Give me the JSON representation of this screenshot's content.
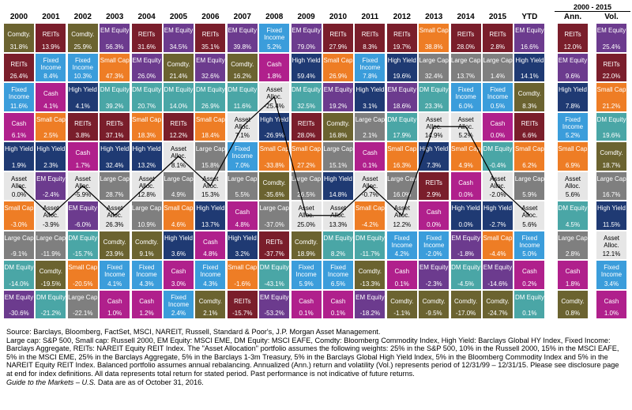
{
  "colors": {
    "Large Cap": "#7f7f7f",
    "Small Cap": "#ee7d25",
    "EM Equity": "#6c3b8e",
    "DM Equity": "#4aa6a6",
    "REITs": "#7a1e2b",
    "Fixed Income": "#3b9ddb",
    "Cash": "#b0208c",
    "High Yield": "#1f3a73",
    "Comdty.": "#6b6330",
    "Asset Alloc.": "#e6e6e6"
  },
  "header": {
    "years": [
      "2000",
      "2001",
      "2002",
      "2003",
      "2004",
      "2005",
      "2006",
      "2007",
      "2008",
      "2009",
      "2010",
      "2011",
      "2012",
      "2013",
      "2014",
      "2015",
      "YTD"
    ],
    "span_label": "2000 - 2015",
    "ann_label": "Ann.",
    "vol_label": "Vol."
  },
  "chart_data": {
    "type": "table",
    "title": "",
    "columns": [
      [
        [
          "Comdty.",
          "31.8%"
        ],
        [
          "REITs",
          "26.4%"
        ],
        [
          "Fixed Income",
          "11.6%"
        ],
        [
          "Cash",
          "6.1%"
        ],
        [
          "High Yield",
          "1.9%"
        ],
        [
          "Asset Alloc.",
          "0.0%"
        ],
        [
          "Small Cap",
          "-3.0%"
        ],
        [
          "Large Cap",
          "-9.1%"
        ],
        [
          "DM Equity",
          "-14.0%"
        ],
        [
          "EM Equity",
          "-30.6%"
        ]
      ],
      [
        [
          "REITs",
          "13.9%"
        ],
        [
          "Fixed Income",
          "8.4%"
        ],
        [
          "Cash",
          "4.1%"
        ],
        [
          "Small Cap",
          "2.5%"
        ],
        [
          "High Yield",
          "2.3%"
        ],
        [
          "EM Equity",
          "-2.4%"
        ],
        [
          "Asset Alloc.",
          "-3.9%"
        ],
        [
          "Large Cap",
          "-11.9%"
        ],
        [
          "Comdty.",
          "-19.5%"
        ],
        [
          "DM Equity",
          "-21.2%"
        ]
      ],
      [
        [
          "Comdty.",
          "25.9%"
        ],
        [
          "Fixed Income",
          "10.3%"
        ],
        [
          "High Yield",
          "4.1%"
        ],
        [
          "REITs",
          "3.8%"
        ],
        [
          "Cash",
          "1.7%"
        ],
        [
          "Asset Alloc.",
          "-5.9%"
        ],
        [
          "EM Equity",
          "-6.0%"
        ],
        [
          "DM Equity",
          "-15.7%"
        ],
        [
          "Small Cap",
          "-20.5%"
        ],
        [
          "Large Cap",
          "-22.1%"
        ]
      ],
      [
        [
          "EM Equity",
          "56.3%"
        ],
        [
          "Small Cap",
          "47.3%"
        ],
        [
          "DM Equity",
          "39.2%"
        ],
        [
          "REITs",
          "37.1%"
        ],
        [
          "High Yield",
          "32.4%"
        ],
        [
          "Large Cap",
          "28.7%"
        ],
        [
          "Asset Alloc.",
          "26.3%"
        ],
        [
          "Comdty.",
          "23.9%"
        ],
        [
          "Fixed Income",
          "4.1%"
        ],
        [
          "Cash",
          "1.0%"
        ]
      ],
      [
        [
          "REITs",
          "31.6%"
        ],
        [
          "EM Equity",
          "26.0%"
        ],
        [
          "DM Equity",
          "20.7%"
        ],
        [
          "Small Cap",
          "18.3%"
        ],
        [
          "High Yield",
          "13.2%"
        ],
        [
          "Asset Alloc.",
          "12.8%"
        ],
        [
          "Large Cap",
          "10.9%"
        ],
        [
          "Comdty.",
          "9.1%"
        ],
        [
          "Fixed Income",
          "4.3%"
        ],
        [
          "Cash",
          "1.2%"
        ]
      ],
      [
        [
          "EM Equity",
          "34.5%"
        ],
        [
          "Comdty.",
          "21.4%"
        ],
        [
          "DM Equity",
          "14.0%"
        ],
        [
          "REITs",
          "12.2%"
        ],
        [
          "Asset Alloc.",
          "8.1%"
        ],
        [
          "Large Cap",
          "4.9%"
        ],
        [
          "Small Cap",
          "4.6%"
        ],
        [
          "High Yield",
          "3.6%"
        ],
        [
          "Cash",
          "3.0%"
        ],
        [
          "Fixed Income",
          "2.4%"
        ]
      ],
      [
        [
          "REITs",
          "35.1%"
        ],
        [
          "EM Equity",
          "32.6%"
        ],
        [
          "DM Equity",
          "26.9%"
        ],
        [
          "Small Cap",
          "18.4%"
        ],
        [
          "Large Cap",
          "15.8%"
        ],
        [
          "Asset Alloc.",
          "15.3%"
        ],
        [
          "High Yield",
          "13.7%"
        ],
        [
          "Cash",
          "4.8%"
        ],
        [
          "Fixed Income",
          "4.3%"
        ],
        [
          "Comdty.",
          "2.1%"
        ]
      ],
      [
        [
          "EM Equity",
          "39.8%"
        ],
        [
          "Comdty.",
          "16.2%"
        ],
        [
          "DM Equity",
          "11.6%"
        ],
        [
          "Asset Alloc.",
          "7.1%"
        ],
        [
          "Fixed Income",
          "7.0%"
        ],
        [
          "Large Cap",
          "5.5%"
        ],
        [
          "Cash",
          "4.8%"
        ],
        [
          "High Yield",
          "3.2%"
        ],
        [
          "Small Cap",
          "-1.6%"
        ],
        [
          "REITs",
          "-15.7%"
        ]
      ],
      [
        [
          "Fixed Income",
          "5.2%"
        ],
        [
          "Cash",
          "1.8%"
        ],
        [
          "Asset Alloc.",
          "-25.4%"
        ],
        [
          "High Yield",
          "-26.9%"
        ],
        [
          "Small Cap",
          "-33.8%"
        ],
        [
          "Comdty.",
          "-35.6%"
        ],
        [
          "Large Cap",
          "-37.0%"
        ],
        [
          "REITs",
          "-37.7%"
        ],
        [
          "DM Equity",
          "-43.1%"
        ],
        [
          "EM Equity",
          "-53.2%"
        ]
      ],
      [
        [
          "EM Equity",
          "79.0%"
        ],
        [
          "High Yield",
          "59.4%"
        ],
        [
          "DM Equity",
          "32.5%"
        ],
        [
          "REITs",
          "28.0%"
        ],
        [
          "Small Cap",
          "27.2%"
        ],
        [
          "Large Cap",
          "26.5%"
        ],
        [
          "Asset Alloc.",
          "25.0%"
        ],
        [
          "Comdty.",
          "18.9%"
        ],
        [
          "Fixed Income",
          "5.9%"
        ],
        [
          "Cash",
          "0.1%"
        ]
      ],
      [
        [
          "REITs",
          "27.9%"
        ],
        [
          "Small Cap",
          "26.9%"
        ],
        [
          "EM Equity",
          "19.2%"
        ],
        [
          "Comdty.",
          "16.8%"
        ],
        [
          "Large Cap",
          "15.1%"
        ],
        [
          "High Yield",
          "14.8%"
        ],
        [
          "Asset Alloc.",
          "13.3%"
        ],
        [
          "DM Equity",
          "8.2%"
        ],
        [
          "Fixed Income",
          "6.5%"
        ],
        [
          "Cash",
          "0.1%"
        ]
      ],
      [
        [
          "REITs",
          "8.3%"
        ],
        [
          "Fixed Income",
          "7.8%"
        ],
        [
          "High Yield",
          "3.1%"
        ],
        [
          "Large Cap",
          "2.1%"
        ],
        [
          "Cash",
          "0.1%"
        ],
        [
          "Asset Alloc.",
          "-0.7%"
        ],
        [
          "Small Cap",
          "-4.2%"
        ],
        [
          "DM Equity",
          "-11.7%"
        ],
        [
          "Comdty.",
          "-13.3%"
        ],
        [
          "EM Equity",
          "-18.2%"
        ]
      ],
      [
        [
          "REITs",
          "19.7%"
        ],
        [
          "High Yield",
          "19.6%"
        ],
        [
          "EM Equity",
          "18.6%"
        ],
        [
          "DM Equity",
          "17.9%"
        ],
        [
          "Small Cap",
          "16.3%"
        ],
        [
          "Large Cap",
          "16.0%"
        ],
        [
          "Asset Alloc.",
          "12.2%"
        ],
        [
          "Fixed Income",
          "4.2%"
        ],
        [
          "Cash",
          "0.1%"
        ],
        [
          "Comdty.",
          "-1.1%"
        ]
      ],
      [
        [
          "Small Cap",
          "38.8%"
        ],
        [
          "Large Cap",
          "32.4%"
        ],
        [
          "DM Equity",
          "23.3%"
        ],
        [
          "Asset Alloc.",
          "14.9%"
        ],
        [
          "High Yield",
          "7.3%"
        ],
        [
          "REITs",
          "2.9%"
        ],
        [
          "Cash",
          "0.0%"
        ],
        [
          "Fixed Income",
          "-2.0%"
        ],
        [
          "EM Equity",
          "-2.3%"
        ],
        [
          "Comdty.",
          "-9.5%"
        ]
      ],
      [
        [
          "REITs",
          "28.0%"
        ],
        [
          "Large Cap",
          "13.7%"
        ],
        [
          "Fixed Income",
          "6.0%"
        ],
        [
          "Asset Alloc.",
          "5.2%"
        ],
        [
          "Small Cap",
          "4.9%"
        ],
        [
          "Cash",
          "0.0%"
        ],
        [
          "High Yield",
          "0.0%"
        ],
        [
          "EM Equity",
          "-1.8%"
        ],
        [
          "DM Equity",
          "-4.5%"
        ],
        [
          "Comdty.",
          "-17.0%"
        ]
      ],
      [
        [
          "REITs",
          "2.8%"
        ],
        [
          "Large Cap",
          "1.4%"
        ],
        [
          "Fixed Income",
          "0.5%"
        ],
        [
          "Cash",
          "0.0%"
        ],
        [
          "DM Equity",
          "-0.4%"
        ],
        [
          "Asset Alloc.",
          "-2.0%"
        ],
        [
          "High Yield",
          "-2.7%"
        ],
        [
          "Small Cap",
          "-4.4%"
        ],
        [
          "EM Equity",
          "-14.6%"
        ],
        [
          "Comdty.",
          "-24.7%"
        ]
      ],
      [
        [
          "EM Equity",
          "16.6%"
        ],
        [
          "High Yield",
          "14.1%"
        ],
        [
          "Comdty.",
          "8.3%"
        ],
        [
          "REITs",
          "6.6%"
        ],
        [
          "Small Cap",
          "6.2%"
        ],
        [
          "Large Cap",
          "5.9%"
        ],
        [
          "Asset Alloc.",
          "5.6%"
        ],
        [
          "Fixed Income",
          "5.0%"
        ],
        [
          "Cash",
          "0.2%"
        ],
        [
          "DM Equity",
          "0.1%"
        ]
      ]
    ],
    "annualized": [
      [
        "REITs",
        "12.0%"
      ],
      [
        "EM Equity",
        "9.6%"
      ],
      [
        "High Yield",
        "7.8%"
      ],
      [
        "Fixed Income",
        "5.2%"
      ],
      [
        "Small Cap",
        "6.9%"
      ],
      [
        "Asset Alloc.",
        "5.6%"
      ],
      [
        "DM Equity",
        "4.5%"
      ],
      [
        "Large Cap",
        "2.8%"
      ],
      [
        "Cash",
        "1.8%"
      ],
      [
        "Comdty.",
        "0.8%"
      ]
    ],
    "volatility": [
      [
        "EM Equity",
        "25.4%"
      ],
      [
        "REITs",
        "22.0%"
      ],
      [
        "Small Cap",
        "21.2%"
      ],
      [
        "DM Equity",
        "19.6%"
      ],
      [
        "Comdty.",
        "18.7%"
      ],
      [
        "Large Cap",
        "16.7%"
      ],
      [
        "High Yield",
        "11.5%"
      ],
      [
        "Asset Alloc.",
        "12.1%"
      ],
      [
        "Fixed Income",
        "3.4%"
      ],
      [
        "Cash",
        "1.0%"
      ]
    ]
  },
  "notes": {
    "source": "Source: Barclays, Bloomberg, FactSet, MSCI, NAREIT, Russell, Standard & Poor's, J.P. Morgan Asset Management.",
    "body": "Large cap: S&P 500, Small cap: Russell 2000, EM Equity: MSCI EME, DM Equity: MSCI EAFE, Comdty: Bloomberg Commodity Index, High Yield: Barclays Global HY Index, Fixed Income: Barclays Aggregate, REITs: NAREIT Equity REIT Index. The \"Asset Allocation\" portfolio assumes the following weights: 25% in the S&P 500, 10% in the Russell 2000, 15% in the MSCI EAFE, 5% in the MSCI EME, 25% in the Barclays Aggregate, 5% in the Barclays 1-3m Treasury, 5% in the Barclays Global High Yield Index, 5% in the Bloomberg Commodity Index and 5% in the NAREIT Equity REIT Index. Balanced portfolio assumes annual rebalancing. Annualized (Ann.) return and volatility (Vol.) represents period of 12/31/99 – 12/31/15. Please see disclosure page at end for index definitions. All data represents total return for stated period. Past performance is not indicative of future returns.",
    "guide": "Guide to the Markets – U.S.",
    "guide_tail": " Data are as of October 31, 2016."
  }
}
